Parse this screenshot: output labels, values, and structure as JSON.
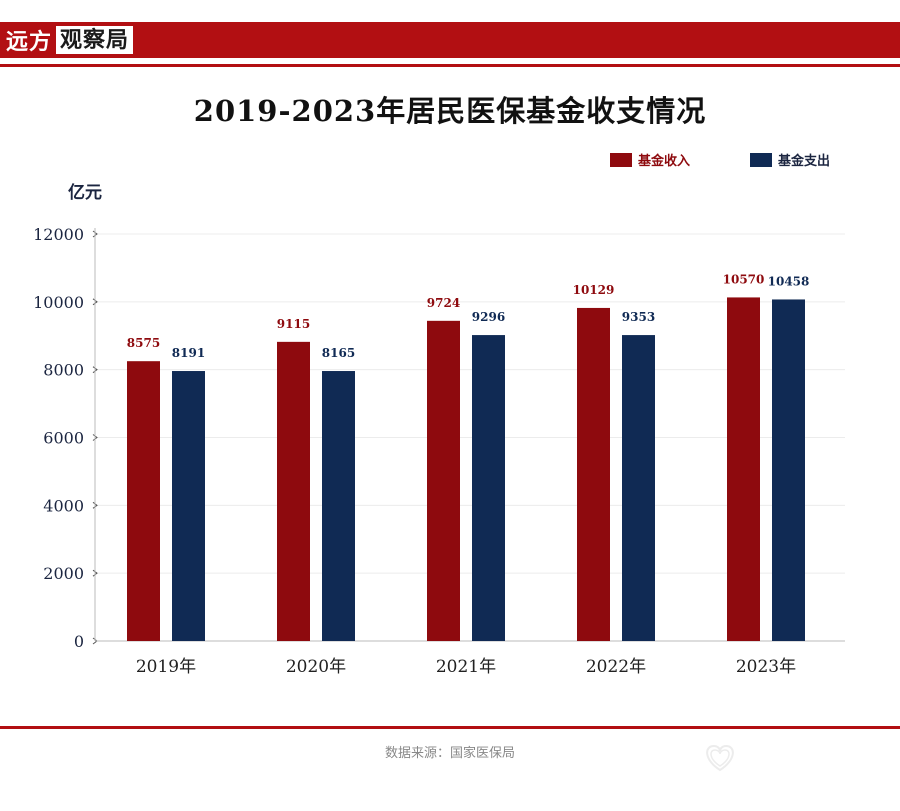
{
  "brand": {
    "part1": "远方",
    "part2": "观察局"
  },
  "source": "数据来源：国家医保局",
  "colors": {
    "income": "#8e0a0e",
    "expense": "#102a54",
    "accent": "#b20f12"
  },
  "chart_data": {
    "type": "bar",
    "title": "2019-2023年居民医保基金收支情况",
    "ylabel": "亿元",
    "xlabel": "",
    "categories": [
      "2019年",
      "2020年",
      "2021年",
      "2022年",
      "2023年"
    ],
    "series": [
      {
        "name": "基金收入",
        "values": [
          8575,
          9115,
          9724,
          10129,
          10570
        ],
        "shown_heights": [
          8250,
          8820,
          9440,
          9820,
          10130
        ]
      },
      {
        "name": "基金支出",
        "values": [
          8191,
          8165,
          9296,
          9353,
          10458
        ],
        "shown_heights": [
          7960,
          7960,
          9020,
          9020,
          10070
        ]
      }
    ],
    "ylim": [
      0,
      12000
    ],
    "yticks": [
      "0",
      "2000",
      "4000",
      "6000",
      "8000",
      "10000",
      "12000"
    ],
    "grid": true,
    "legend_position": "top-right"
  }
}
